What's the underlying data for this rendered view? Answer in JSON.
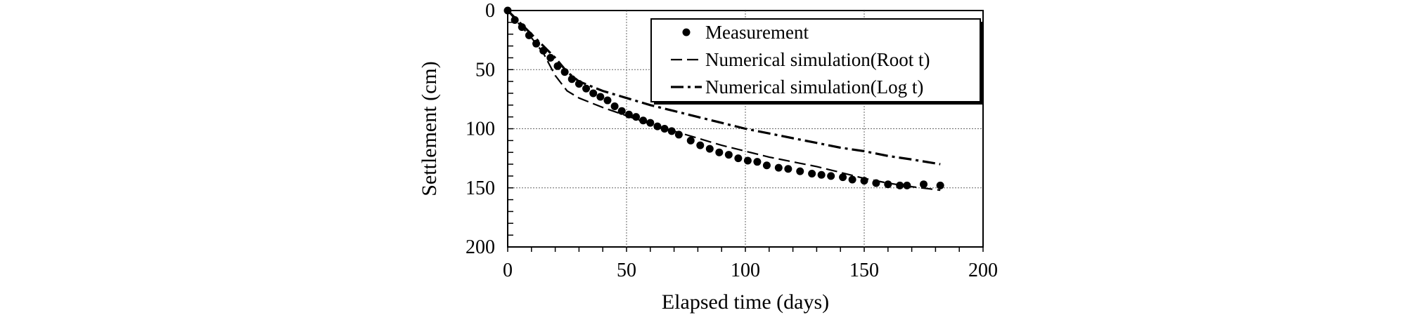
{
  "chart_data": {
    "type": "scatter",
    "xlabel": "Elapsed time (days)",
    "ylabel": "Settlement  (cm)",
    "xlim": [
      0,
      200
    ],
    "ylim": [
      0,
      200
    ],
    "y_inverted": true,
    "xticks": [
      0,
      50,
      100,
      150,
      200
    ],
    "yticks": [
      0,
      50,
      100,
      150,
      200
    ],
    "grid": "dotted",
    "legend_position": "top-right",
    "series": [
      {
        "name": "Measurement",
        "style": "markers",
        "x": [
          0,
          3,
          6,
          9,
          12,
          15,
          18,
          21,
          24,
          27,
          30,
          33,
          36,
          39,
          42,
          45,
          48,
          51,
          54,
          57,
          60,
          63,
          66,
          69,
          72,
          77,
          81,
          85,
          89,
          93,
          97,
          101,
          105,
          109,
          114,
          118,
          123,
          128,
          132,
          136,
          141,
          145,
          150,
          155,
          160,
          165,
          168,
          175,
          182
        ],
        "y": [
          0,
          8,
          14,
          21,
          28,
          34,
          40,
          47,
          52,
          58,
          62,
          66,
          70,
          73,
          76,
          81,
          85,
          88,
          90,
          93,
          95,
          98,
          100,
          102,
          105,
          110,
          114,
          117,
          120,
          122,
          125,
          127,
          128,
          131,
          133,
          134,
          136,
          138,
          139,
          140,
          141,
          143,
          144,
          146,
          147,
          148,
          148,
          147,
          148
        ]
      },
      {
        "name": "Numerical simulation(Root t)",
        "style": "dashed",
        "x": [
          0,
          5,
          10,
          15,
          20,
          25,
          30,
          40,
          50,
          60,
          70,
          80,
          90,
          100,
          110,
          120,
          130,
          140,
          150,
          160,
          170,
          182
        ],
        "y": [
          0,
          12,
          23,
          36,
          55,
          68,
          74,
          82,
          89,
          96,
          102,
          108,
          114,
          119,
          124,
          128,
          132,
          137,
          142,
          146,
          149,
          152
        ]
      },
      {
        "name": "Numerical simulation(Log t)",
        "style": "dash-dot",
        "x": [
          0,
          5,
          10,
          20,
          25,
          30,
          40,
          50,
          60,
          70,
          80,
          90,
          100,
          110,
          120,
          130,
          140,
          150,
          160,
          170,
          182
        ],
        "y": [
          0,
          10,
          20,
          40,
          52,
          60,
          68,
          74,
          80,
          85,
          90,
          95,
          100,
          104,
          108,
          112,
          116,
          119,
          123,
          126,
          130
        ]
      }
    ]
  }
}
